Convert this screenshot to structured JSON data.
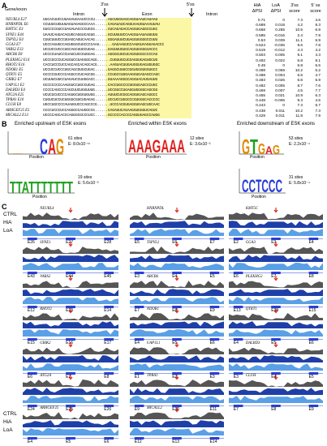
{
  "panel_a": {
    "label": "A",
    "col_gene": "Gene/exon",
    "col_intron1": "Intron",
    "col_3ss": "3'ss",
    "col_exon": "Exon",
    "col_5ss": "5'ss",
    "col_intron2": "Intron",
    "col_hia": "HiA ΔPSI",
    "col_loa": "LoA ΔPSI",
    "col_3score": "3'ss score",
    "col_5score": "5' ss score",
    "rows": [
      {
        "gene": "NEURL4 E27",
        "seq": "UUCACUUCCUUAGAUGAAUCCCCU......AGCUGGGAGCAGGUAAUCAUAAU",
        "hia": "0.71",
        "loa": "0",
        "s3": "7.3",
        "s5": "4.6"
      },
      {
        "gene": "HNRNPDL E6",
        "seq": "CCUUUCUGUUUAGUAGAGGCCAAA......CAGAUAUCAGGUAAUGUAAAUUAU",
        "hia": "0.689",
        "loa": "0.018",
        "s3": "4.2",
        "s5": "8.3"
      },
      {
        "gene": "KMT5C E3",
        "seq": "GUCCCCGUCCUAGAUACCCCUGCG......CUCAGAGACCAGGUGAGGCCUGC",
        "hia": "0.668",
        "loa": "0.265",
        "s3": "10.5",
        "s5": "6.9"
      },
      {
        "gene": "SYNE1 E44",
        "seq": "UAAUCAUUACAGUGCAGGUCAGUG......GCUUUUUCCAAGGUAAUAUUUUU",
        "hia": "0.585",
        "loa": "-0.016",
        "s3": "2.4",
        "s5": "7.9"
      },
      {
        "gene": "TSPYL2 E4",
        "seq": "CUUCUUUCCCUUAGCAGUCAACAG......GGGAUUUCUGAGGUGGGGCCUUU",
        "hia": "0.53",
        "loa": "0.039",
        "s3": "11.1",
        "s5": "6.9"
      },
      {
        "gene": "GGA3 E7",
        "seq": "UCCCAGUGCCAGUGGGCUGCCCCAAG......GAGAAGUCCAAGGUAAGGAGACCC",
        "hia": "0.524",
        "loa": "-0.036",
        "s3": "9.6",
        "s5": "7.8"
      },
      {
        "gene": "VARS2 E13",
        "seq": "UCCUCCUCCCUGCAGCUUGCUGAG......GAGUUUGUGCAGGUGGGGUACCC",
        "hia": "0.519",
        "loa": "-0.012",
        "s3": "4.3",
        "s5": "4.2"
      },
      {
        "gene": "ABCB6 E8",
        "seq": "UCCCCUAUCCCUAGCUCCGUGGAG......AGGGCUGCUCAGGUGGCCCCCAG",
        "hia": "0.503",
        "loa": "0.005",
        "s3": "9.1",
        "s5": "4.3"
      },
      {
        "gene": "PLEKHG2 E14",
        "seq": "UCCCGCCCUCAGGUCCGAGGGCAGG......CUGUUGCUCGAGGUGAGUGCUG",
        "hia": "0.492",
        "loa": "0.022",
        "s3": "6.8",
        "s5": "8.1"
      },
      {
        "gene": "RHOT2 E16",
        "seq": "CACCUCCCUCCAGCAGCACAGCACG......AAGUACUUGAUGGUGAGUGUGGC",
        "hia": "0.49",
        "loa": "0",
        "s3": "6.8",
        "s5": "6.6"
      },
      {
        "gene": "NDOR1 E5",
        "seq": "UCCUCCUCCCUGCAGCGUGCUGAC......GAGGCUUUCCGGUGGGUGGUGCC",
        "hia": "0.488",
        "loa": "0.069",
        "s3": "10.2",
        "s5": "6.2"
      },
      {
        "gene": "QTRT1 E5",
        "seq": "GCCCCGUCCCCAGGCCCUCAGCGG......CCUGCCUUGAAGGUGAGAGCCAGC",
        "hia": "0.488",
        "loa": "0.004",
        "s3": "6.5",
        "s5": "4.7"
      },
      {
        "gene": "GRIK2 E7",
        "seq": "UCUUUCUUCCUAGAUCCUUGGACC......GUAAAAGGGCAGGUACAUGAUUG",
        "hia": "0.483",
        "loa": "0.026",
        "s3": "6.8",
        "s5": "5.9"
      },
      {
        "gene": "UAP1L1 E2",
        "seq": "GCCCCCCCCAAGGUCCUGCCUGAG......CACCUGCCCCUGGUGAGCCCUGC",
        "hia": "0.482",
        "loa": "0.005",
        "s3": "8.7",
        "s5": "7.6"
      },
      {
        "gene": "DALRD3 E4",
        "seq": "CCCCCAGCCCCAGCUUCUGGUUUG......UCCGGCCUGAGGUGGGGCAGCGG",
        "hia": "0.469",
        "loa": "0.007",
        "s3": "4.5",
        "s5": "7.7"
      },
      {
        "gene": "ATG2A E25",
        "seq": "UCUCUCUCCCCAGUGCUGGUGUGG......AUUUCUCGGCAGGUGAGCAGGCC",
        "hia": "0.455",
        "loa": "0.021",
        "s3": "10.9",
        "s5": "6.3"
      },
      {
        "gene": "TPRA1 E10",
        "seq": "CUGUCUCCUCUGGGCGUCUGAGAG......UCCUCCUGGCCCGUGGGCACCCCC",
        "hia": "0.448",
        "loa": "-0.006",
        "s3": "9.3",
        "s5": "4.6"
      },
      {
        "gene": "CLUH E8",
        "seq": "UGCCUGCCCCAUAGGUCCCAGCCCG......UCCCACGUGAGGUGAGCUGCAAC",
        "hia": "0.443",
        "loa": "0",
        "s3": "7.3",
        "s5": "5.7"
      },
      {
        "gene": "ARHGEF25 E5",
        "seq": "CCCCUCCCUCCAGGGCCAUGGCCG......CAGAUUCAGAAGGUGGGUCAGUC",
        "hia": "0.438",
        "loa": "0.011",
        "s3": "10.2",
        "s5": "7.3"
      },
      {
        "gene": "MICALL2 E13",
        "seq": "UCCCCAGCACCCAGGGCGCCCUCC......GCCCCCACCCCAGGUGAGCCAUGG",
        "hia": "0.429",
        "loa": "0.011",
        "s3": "11.8",
        "s5": "7.9"
      }
    ]
  },
  "panel_b": {
    "label": "B",
    "title1": "Enriched upstream of ESK exons",
    "title2": "Enriched within ESK exons",
    "title3": "Enriched downstream of ESK exons",
    "motifs": [
      {
        "logo": "CAG",
        "sites": "61 sites",
        "evalue": "E: 8.0x10⁻¹¹",
        "color": "orange"
      },
      {
        "logo": "AAAGAAA",
        "sites": "12 sites",
        "evalue": "E: 3.6x10⁻²",
        "color": "red"
      },
      {
        "logo": "GTGAG",
        "sites": "53 sites",
        "evalue": "E: 2.2x10⁻⁴",
        "color": "green"
      },
      {
        "logo": "TTATTTTTTT",
        "sites": "19 sites",
        "evalue": "E: 5.6x10⁻³",
        "color": "teal"
      },
      {
        "logo": "CCTCCC",
        "sites": "31 sites",
        "evalue": "E: 5.8x10⁻⁴",
        "color": "blue"
      }
    ],
    "position_label": "Position",
    "bits_label": "bits"
  },
  "panel_c": {
    "label": "C",
    "row_labels": [
      "CTRL",
      "HiA",
      "LoA"
    ],
    "genes": [
      {
        "name": "NEURL4",
        "exons": [
          "E26",
          "E27",
          "E28"
        ]
      },
      {
        "name": "HNRNPDL",
        "exons": [
          "E5",
          "E6",
          "E7"
        ]
      },
      {
        "name": "KMT5C",
        "exons": [
          "E2",
          "E3",
          "E4"
        ]
      },
      {
        "name": "SYNE1",
        "exons": [
          "E43",
          "E44",
          "E45"
        ]
      },
      {
        "name": "TSPYL2",
        "exons": [
          "E3",
          "E4",
          "E5"
        ]
      },
      {
        "name": "GGA3",
        "exons": [
          "E6",
          "E7",
          "E8"
        ]
      },
      {
        "name": "VARS2",
        "exons": [
          "E12",
          "E13",
          "E14"
        ]
      },
      {
        "name": "ABCB6",
        "exons": [
          "E7",
          "E8",
          "E9"
        ]
      },
      {
        "name": "PLEKHG2",
        "exons": [
          "E13",
          "E14",
          "E15"
        ]
      },
      {
        "name": "RHOT2",
        "exons": [
          "E15",
          "E16",
          "E17"
        ]
      },
      {
        "name": "NDOR1",
        "exons": [
          "E4",
          "E5",
          "E6"
        ]
      },
      {
        "name": "QTRT1",
        "exons": [
          "E4",
          "E5",
          "E6"
        ]
      },
      {
        "name": "GRIK2",
        "exons": [
          "E6",
          "E7",
          "E8"
        ]
      },
      {
        "name": "UAP1L1",
        "exons": [
          "E1",
          "E2",
          "E3"
        ]
      },
      {
        "name": "DALRD3",
        "exons": [
          "E3",
          "E4",
          "E5"
        ]
      },
      {
        "name": "ATG2A",
        "exons": [
          "E24",
          "E25",
          "E26"
        ]
      },
      {
        "name": "TPRA1",
        "exons": [
          "E9",
          "E10",
          "E11"
        ]
      },
      {
        "name": "CLUH",
        "exons": [
          "E7",
          "E8",
          "E9"
        ]
      },
      {
        "name": "ARHGEF25",
        "exons": [
          "E4",
          "E5",
          "E6"
        ]
      },
      {
        "name": "MICALL2",
        "exons": [
          "E12",
          "E13",
          "E14"
        ]
      }
    ],
    "colors": {
      "ctrl": "#555555",
      "hia": "#1f3fa8",
      "loa": "#5aa0e6",
      "exon": "#2a3fd6",
      "arrow": "#e03020"
    }
  }
}
